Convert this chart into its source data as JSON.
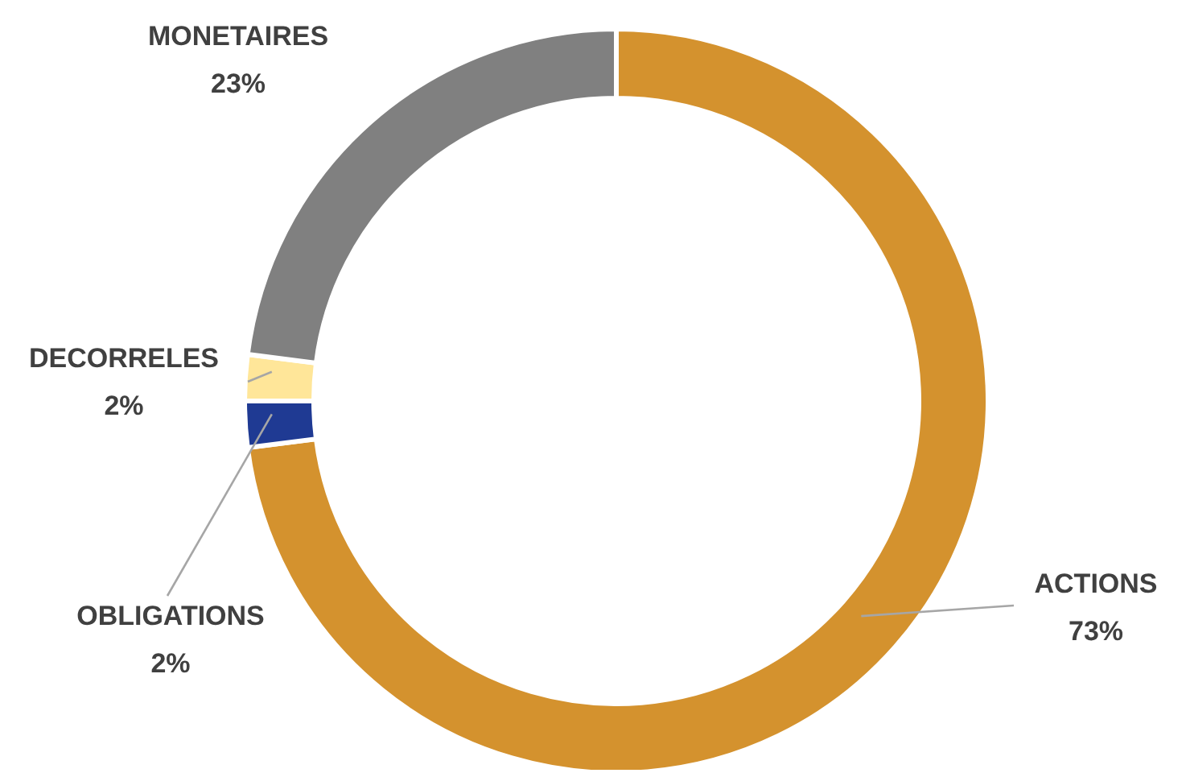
{
  "chart_data": {
    "type": "donut",
    "categories": [
      "ACTIONS",
      "OBLIGATIONS",
      "DECORRELES",
      "MONETAIRES"
    ],
    "values": [
      73,
      2,
      2,
      23
    ],
    "value_labels": [
      "73%",
      "2%",
      "2%",
      "23%"
    ],
    "colors": [
      "#d4922e",
      "#1f3a93",
      "#ffe699",
      "#808080"
    ]
  }
}
